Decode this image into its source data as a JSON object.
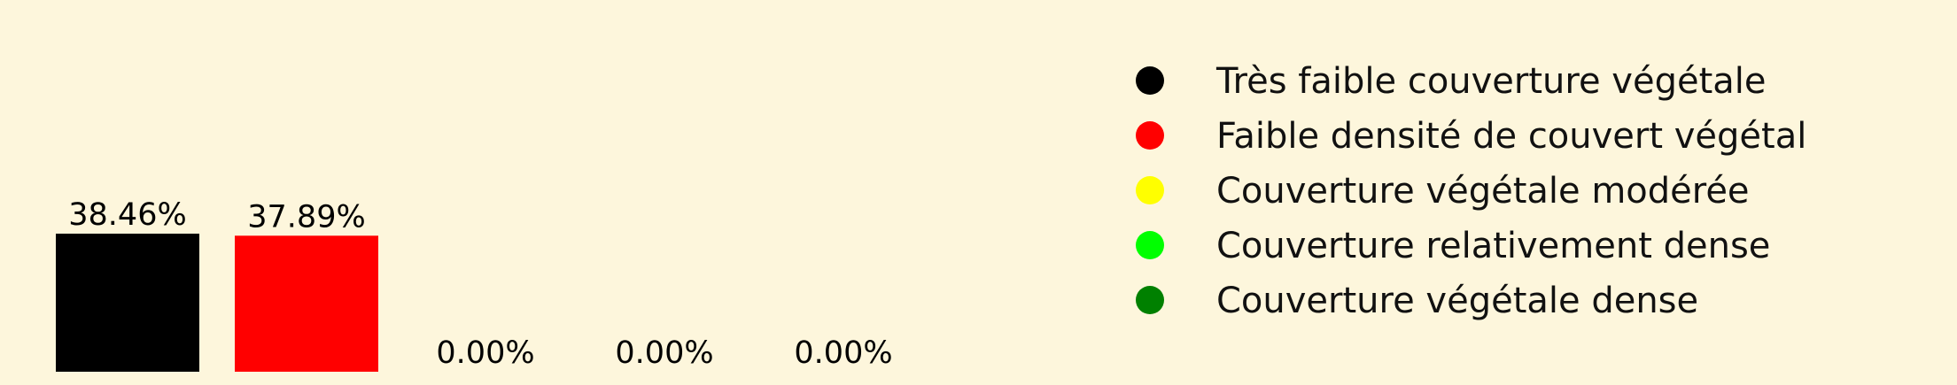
{
  "background": "#fdf6dc",
  "chart_data": {
    "type": "bar",
    "categories": [
      "Très faible couverture végétale",
      "Faible densité de couvert végétal",
      "Couverture végétale modérée",
      "Couverture relativement dense",
      "Couverture végétale dense"
    ],
    "values": [
      38.46,
      37.89,
      0.0,
      0.0,
      0.0
    ],
    "value_labels": [
      "38.46%",
      "37.89%",
      "0.00%",
      "0.00%",
      "0.00%"
    ],
    "colors": [
      "#000000",
      "#ff0000",
      "#ffff00",
      "#00ff00",
      "#008000"
    ],
    "ylim": [
      0,
      38.46
    ],
    "legend_placement": "right",
    "grid": false,
    "axes_visible": false
  }
}
